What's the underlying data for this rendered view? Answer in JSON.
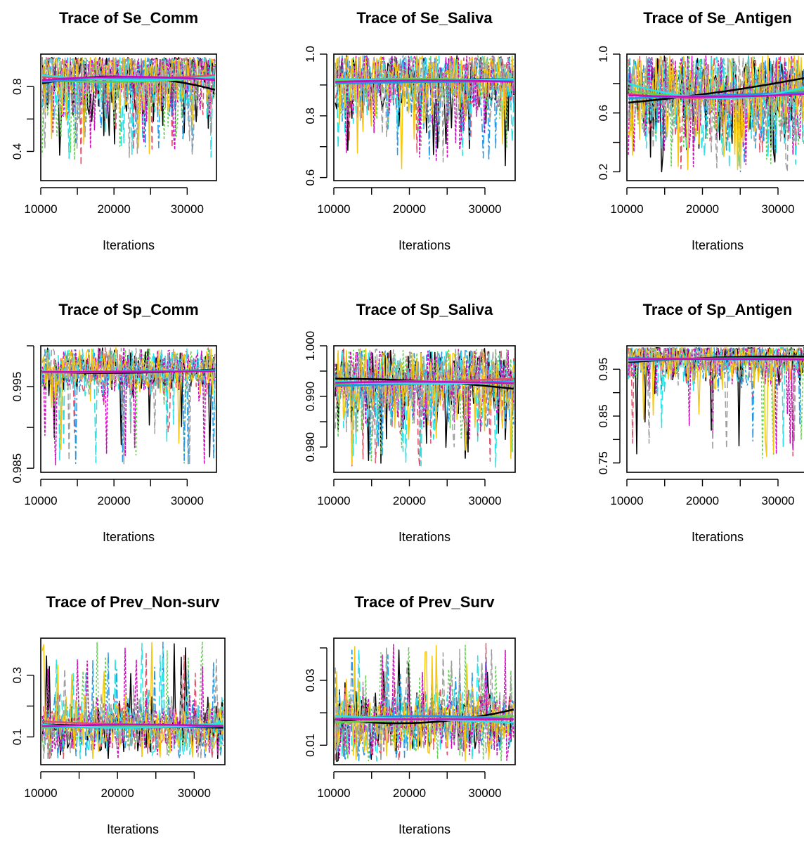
{
  "figure": {
    "series_colors": [
      "#000000",
      "#DF536B",
      "#61D04F",
      "#2297E6",
      "#28E2E5",
      "#CD0BBC",
      "#F5C710",
      "#9E9E9E"
    ],
    "trend_colors": [
      "#000000",
      "#DF536B",
      "#61D04F",
      "#2297E6",
      "#28E2E5",
      "#CD0BBC"
    ]
  },
  "chart_data": [
    {
      "type": "line",
      "title": "Trace of Se_Comm",
      "xlabel": "Iterations",
      "ylabel": "",
      "xlim": [
        10000,
        34000
      ],
      "ylim": [
        0.22,
        1.0
      ],
      "xticks": [
        10000,
        20000,
        30000
      ],
      "xtick_labels": [
        "10000",
        "20000",
        "30000"
      ],
      "yticks": [
        0.4,
        0.6,
        0.8
      ],
      "ytick_labels": [
        "0.4",
        "",
        "0.8"
      ],
      "center": 0.85,
      "spread": 0.14,
      "upper": 0.98,
      "lower": 0.3,
      "n_chains": 8,
      "trend_lines": [
        [
          0.82,
          0.86,
          0.78
        ],
        [
          0.86,
          0.85,
          0.87
        ],
        [
          0.84,
          0.83,
          0.86
        ],
        [
          0.83,
          0.85,
          0.85
        ],
        [
          0.87,
          0.84,
          0.86
        ],
        [
          0.84,
          0.86,
          0.84
        ]
      ]
    },
    {
      "type": "line",
      "title": "Trace of Se_Saliva",
      "xlabel": "Iterations",
      "ylabel": "",
      "xlim": [
        10000,
        34000
      ],
      "ylim": [
        0.59,
        1.0
      ],
      "xticks": [
        10000,
        20000,
        30000
      ],
      "xtick_labels": [
        "10000",
        "20000",
        "30000"
      ],
      "yticks": [
        0.6,
        0.7,
        0.8,
        0.9,
        1.0
      ],
      "ytick_labels": [
        "0.6",
        "",
        "0.8",
        "",
        "1.0"
      ],
      "center": 0.91,
      "spread": 0.07,
      "upper": 0.995,
      "lower": 0.62,
      "n_chains": 8,
      "trend_lines": [
        [
          0.91,
          0.915,
          0.92
        ],
        [
          0.92,
          0.91,
          0.915
        ],
        [
          0.915,
          0.92,
          0.91
        ],
        [
          0.905,
          0.91,
          0.915
        ],
        [
          0.92,
          0.915,
          0.92
        ],
        [
          0.91,
          0.915,
          0.91
        ]
      ]
    },
    {
      "type": "line",
      "title": "Trace of Se_Antigen",
      "xlabel": "Iterations",
      "ylabel": "",
      "xlim": [
        10000,
        34000
      ],
      "ylim": [
        0.14,
        1.0
      ],
      "xticks": [
        10000,
        20000,
        30000
      ],
      "xtick_labels": [
        "10000",
        "20000",
        "30000"
      ],
      "yticks": [
        0.2,
        0.4,
        0.6,
        0.8,
        1.0
      ],
      "ytick_labels": [
        "0.2",
        "",
        "0.6",
        "",
        "1.0"
      ],
      "center": 0.72,
      "spread": 0.17,
      "upper": 0.99,
      "lower": 0.2,
      "n_chains": 8,
      "trend_lines": [
        [
          0.67,
          0.74,
          0.84
        ],
        [
          0.73,
          0.7,
          0.75
        ],
        [
          0.75,
          0.71,
          0.76
        ],
        [
          0.7,
          0.72,
          0.74
        ],
        [
          0.8,
          0.7,
          0.78
        ],
        [
          0.72,
          0.71,
          0.73
        ]
      ]
    },
    {
      "type": "line",
      "title": "Trace of Sp_Comm",
      "xlabel": "Iterations",
      "ylabel": "",
      "xlim": [
        10000,
        34000
      ],
      "ylim": [
        0.9845,
        1.0
      ],
      "xticks": [
        10000,
        20000,
        30000
      ],
      "xtick_labels": [
        "10000",
        "20000",
        "30000"
      ],
      "yticks": [
        0.985,
        0.99,
        0.995,
        1.0
      ],
      "ytick_labels": [
        "0.985",
        "",
        "0.995",
        ""
      ],
      "center": 0.9968,
      "spread": 0.0015,
      "upper": 0.9998,
      "lower": 0.9852,
      "n_chains": 8,
      "trend_lines": [
        [
          0.9968,
          0.9967,
          0.9971
        ],
        [
          0.9969,
          0.9968,
          0.997
        ],
        [
          0.9967,
          0.9968,
          0.9969
        ],
        [
          0.9968,
          0.9969,
          0.9969
        ],
        [
          0.9969,
          0.9968,
          0.997
        ],
        [
          0.9968,
          0.9968,
          0.9969
        ]
      ]
    },
    {
      "type": "line",
      "title": "Trace of Sp_Saliva",
      "xlabel": "Iterations",
      "ylabel": "",
      "xlim": [
        10000,
        34000
      ],
      "ylim": [
        0.975,
        1.0
      ],
      "xticks": [
        10000,
        20000,
        30000
      ],
      "xtick_labels": [
        "10000",
        "20000",
        "30000"
      ],
      "yticks": [
        0.98,
        0.985,
        0.99,
        0.995,
        1.0
      ],
      "ytick_labels": [
        "0.980",
        "",
        "0.990",
        "",
        "1.000"
      ],
      "center": 0.9925,
      "spread": 0.0045,
      "upper": 0.9995,
      "lower": 0.976,
      "n_chains": 8,
      "trend_lines": [
        [
          0.9935,
          0.993,
          0.9915
        ],
        [
          0.992,
          0.9928,
          0.9935
        ],
        [
          0.9925,
          0.993,
          0.9925
        ],
        [
          0.9922,
          0.9925,
          0.993
        ],
        [
          0.993,
          0.9925,
          0.9928
        ],
        [
          0.9927,
          0.9929,
          0.9926
        ]
      ]
    },
    {
      "type": "line",
      "title": "Trace of Sp_Antigen",
      "xlabel": "Iterations",
      "ylabel": "",
      "xlim": [
        10000,
        34000
      ],
      "ylim": [
        0.73,
        1.0
      ],
      "xticks": [
        10000,
        20000,
        30000
      ],
      "xtick_labels": [
        "10000",
        "20000",
        "30000"
      ],
      "yticks": [
        0.75,
        0.8,
        0.85,
        0.9,
        0.95
      ],
      "ytick_labels": [
        "0.75",
        "",
        "0.85",
        "",
        "0.95"
      ],
      "center": 0.972,
      "spread": 0.03,
      "upper": 0.996,
      "lower": 0.76,
      "n_chains": 8,
      "trend_lines": [
        [
          0.965,
          0.975,
          0.977
        ],
        [
          0.972,
          0.973,
          0.971
        ],
        [
          0.97,
          0.972,
          0.973
        ],
        [
          0.974,
          0.971,
          0.972
        ],
        [
          0.968,
          0.973,
          0.972
        ],
        [
          0.971,
          0.972,
          0.971
        ]
      ]
    },
    {
      "type": "line",
      "title": "Trace of Prev_Non-surv",
      "xlabel": "Iterations",
      "ylabel": "",
      "xlim": [
        10000,
        34000
      ],
      "ylim": [
        0.01,
        0.42
      ],
      "xticks": [
        10000,
        20000,
        30000
      ],
      "xtick_labels": [
        "10000",
        "20000",
        "30000"
      ],
      "yticks": [
        0.1,
        0.2,
        0.3
      ],
      "ytick_labels": [
        "0.1",
        "",
        "0.3"
      ],
      "center": 0.135,
      "spread": 0.045,
      "upper": 0.41,
      "lower": 0.03,
      "n_chains": 8,
      "trend_lines": [
        [
          0.14,
          0.135,
          0.13
        ],
        [
          0.15,
          0.14,
          0.135
        ],
        [
          0.13,
          0.135,
          0.14
        ],
        [
          0.135,
          0.13,
          0.135
        ],
        [
          0.14,
          0.13,
          0.145
        ],
        [
          0.135,
          0.14,
          0.135
        ]
      ]
    },
    {
      "type": "line",
      "title": "Trace of Prev_Surv",
      "xlabel": "Iterations",
      "ylabel": "",
      "xlim": [
        10000,
        34000
      ],
      "ylim": [
        0.004,
        0.043
      ],
      "xticks": [
        10000,
        20000,
        30000
      ],
      "xtick_labels": [
        "10000",
        "20000",
        "30000"
      ],
      "yticks": [
        0.01,
        0.02,
        0.03,
        0.04
      ],
      "ytick_labels": [
        "0.01",
        "",
        "0.03",
        ""
      ],
      "center": 0.018,
      "spread": 0.005,
      "upper": 0.042,
      "lower": 0.005,
      "n_chains": 8,
      "trend_lines": [
        [
          0.018,
          0.017,
          0.021
        ],
        [
          0.019,
          0.018,
          0.018
        ],
        [
          0.017,
          0.018,
          0.019
        ],
        [
          0.018,
          0.019,
          0.018
        ],
        [
          0.019,
          0.018,
          0.017
        ],
        [
          0.018,
          0.018,
          0.018
        ]
      ]
    }
  ]
}
